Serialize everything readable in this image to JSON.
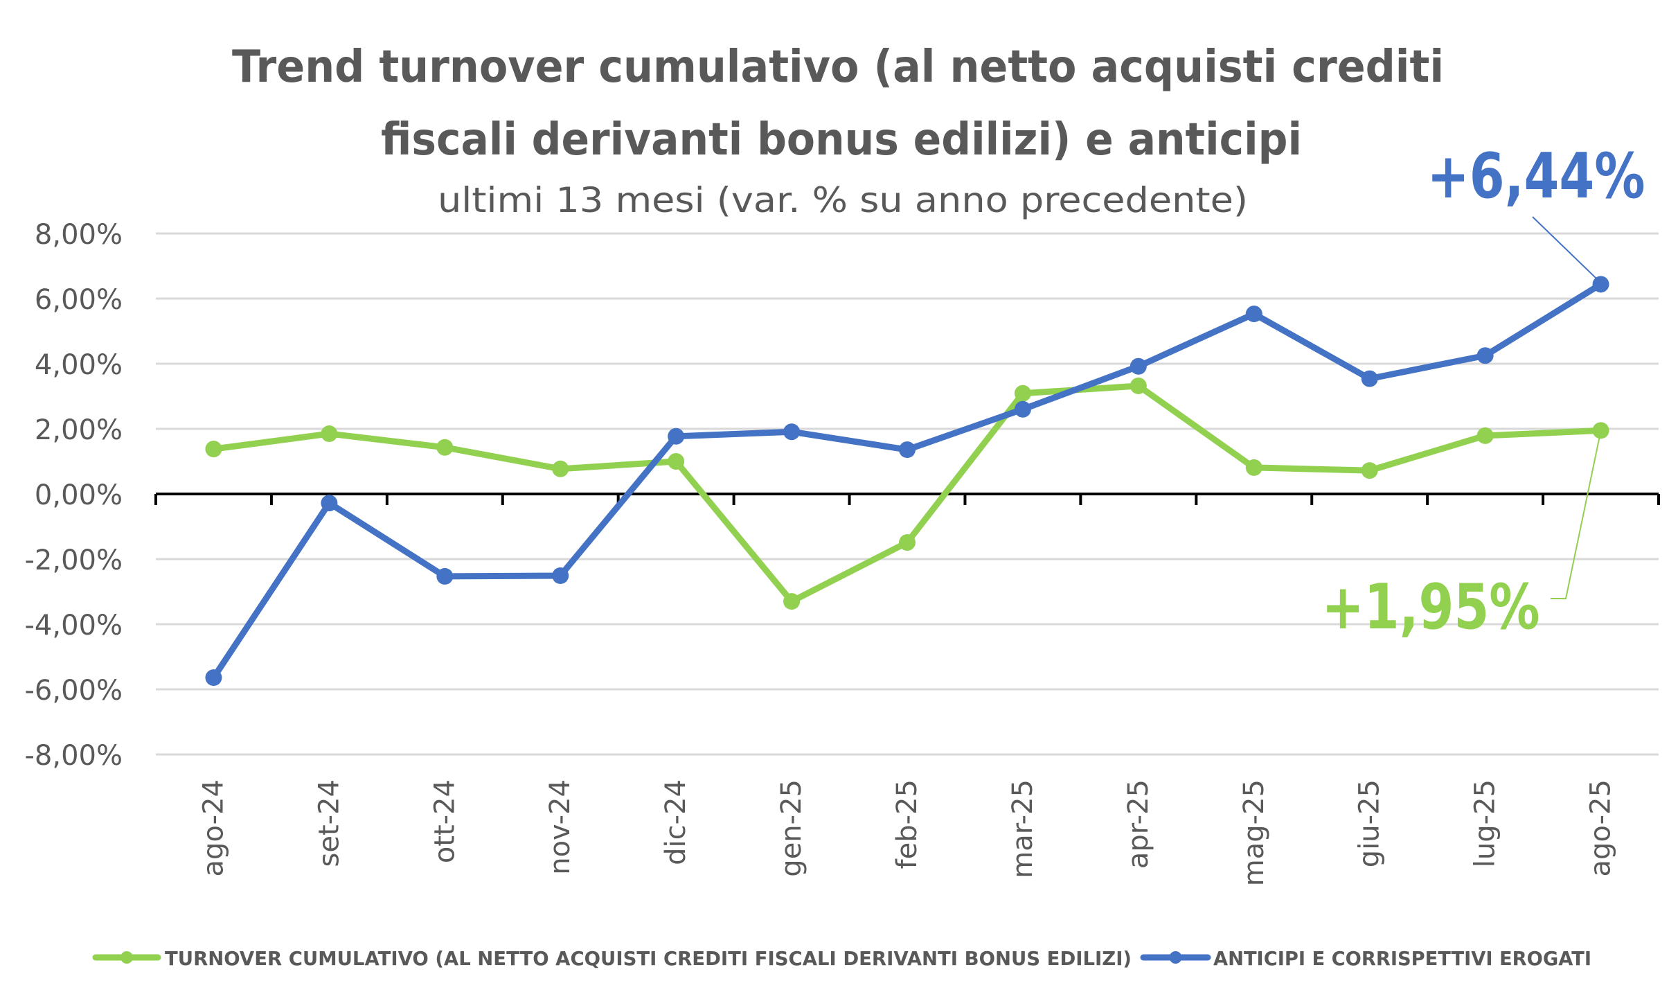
{
  "chart_data": {
    "type": "line",
    "title_lines": [
      "Trend turnover cumulativo (al netto acquisti crediti",
      "fiscali derivanti bonus edilizi) e anticipi"
    ],
    "subtitle": "ultimi 13 mesi (var. % su anno precedente)",
    "xlabel": "",
    "ylabel": "",
    "categories": [
      "ago-24",
      "set-24",
      "ott-24",
      "nov-24",
      "dic-24",
      "gen-25",
      "feb-25",
      "mar-25",
      "apr-25",
      "mag-25",
      "giu-25",
      "lug-25",
      "ago-25"
    ],
    "ylim": [
      -8,
      8
    ],
    "yticks": [
      8,
      6,
      4,
      2,
      0,
      -2,
      -4,
      -6,
      -8
    ],
    "ytick_labels": [
      "8,00%",
      "6,00%",
      "4,00%",
      "2,00%",
      "0,00%",
      "-2,00%",
      "-4,00%",
      "-6,00%",
      "-8,00%"
    ],
    "grid": true,
    "legend_position": "bottom",
    "series": [
      {
        "name": "TURNOVER CUMULATIVO (AL NETTO ACQUISTI CREDITI FISCALI DERIVANTI BONUS EDILIZI)",
        "color": "#92D050",
        "values": [
          1.38,
          1.85,
          1.43,
          0.77,
          1.0,
          -3.3,
          -1.49,
          3.09,
          3.32,
          0.81,
          0.72,
          1.79,
          1.95
        ]
      },
      {
        "name": "ANTICIPI E CORRISPETTIVI EROGATI",
        "color": "#4472C4",
        "values": [
          -5.64,
          -0.28,
          -2.53,
          -2.51,
          1.77,
          1.91,
          1.36,
          2.6,
          3.92,
          5.53,
          3.54,
          4.25,
          6.44
        ]
      }
    ],
    "annotations": [
      {
        "text": "+6,44%",
        "series": 1,
        "category": "ago-25",
        "color": "#4472C4"
      },
      {
        "text": "+1,95%",
        "series": 0,
        "category": "ago-25",
        "color": "#92D050"
      }
    ]
  }
}
